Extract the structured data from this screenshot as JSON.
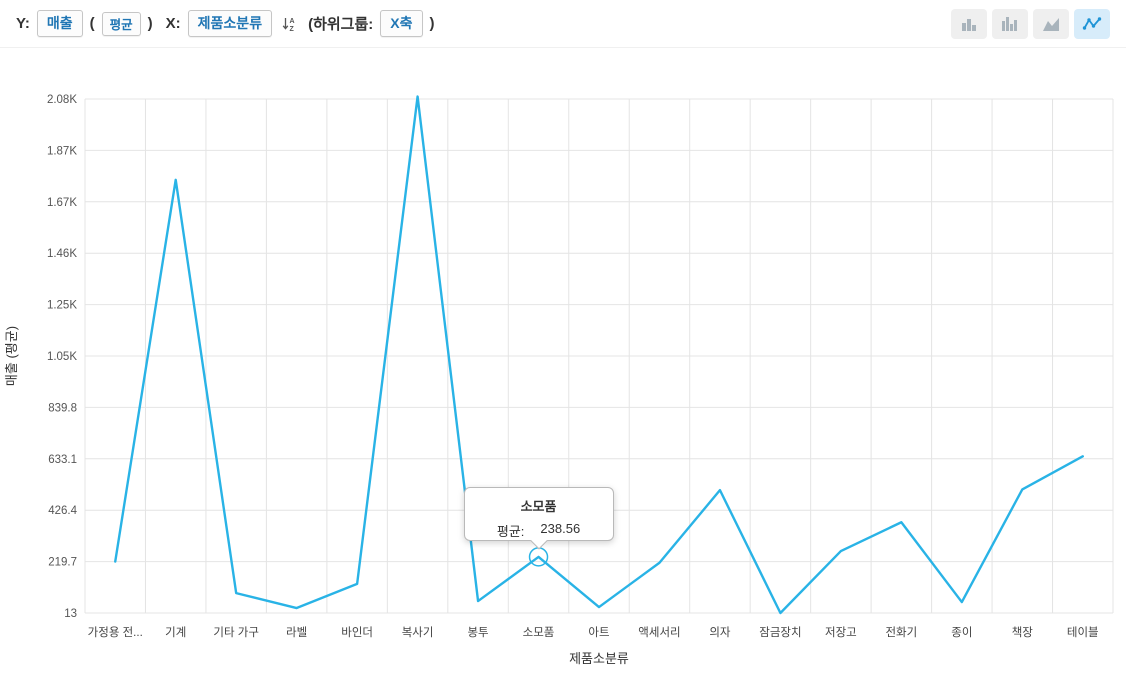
{
  "toolbar": {
    "y_label": "Y:",
    "y_field": "매출",
    "paren_open": "(",
    "y_agg": "평균",
    "paren_close": ")",
    "x_label": "X:",
    "x_field": "제품소분류",
    "subgroup_prefix": "(하위그룹:",
    "subgroup_value": "X축",
    "subgroup_suffix": ")",
    "icons": [
      {
        "name": "sort-az-icon"
      },
      {
        "name": "bar-chart-icon"
      },
      {
        "name": "column-chart-icon"
      },
      {
        "name": "area-chart-icon"
      },
      {
        "name": "line-chart-icon",
        "selected": true
      }
    ]
  },
  "tooltip": {
    "title": "소모품",
    "label": "평균:",
    "value": "238.56"
  },
  "colors": {
    "line": "#29b3e6",
    "grid": "#e4e4e4",
    "pill_text": "#2076b4",
    "active_icon_bg": "#d7ecfa",
    "icon_gray": "#a9b4bc",
    "icon_blue": "#1f94d6"
  },
  "chart_data": {
    "type": "line",
    "title": "",
    "xlabel": "제품소분류",
    "ylabel": "매출 (평균)",
    "categories": [
      "가정용 전...",
      "기계",
      "기타 가구",
      "라벨",
      "바인더",
      "복사기",
      "봉투",
      "소모품",
      "아트",
      "액세서리",
      "의자",
      "잠금장치",
      "저장고",
      "전화기",
      "종이",
      "책장",
      "테이블"
    ],
    "values": [
      220,
      1755,
      93,
      33,
      130,
      2090,
      61,
      238.56,
      37,
      215,
      507,
      13,
      262,
      378,
      57,
      510,
      643
    ],
    "yticks": {
      "values": [
        13,
        219.7,
        426.4,
        633.1,
        839.8,
        1046.5,
        1253.2,
        1459.9,
        1666.6,
        1873.3,
        2080
      ],
      "labels": [
        "13",
        "219.7",
        "426.4",
        "633.1",
        "839.8",
        "1.05K",
        "1.25K",
        "1.46K",
        "1.67K",
        "1.87K",
        "2.08K"
      ]
    },
    "ylim": [
      13,
      2080
    ],
    "grid": true,
    "legend": "none",
    "line_color": "#29b3e6",
    "highlight_index": 7
  }
}
